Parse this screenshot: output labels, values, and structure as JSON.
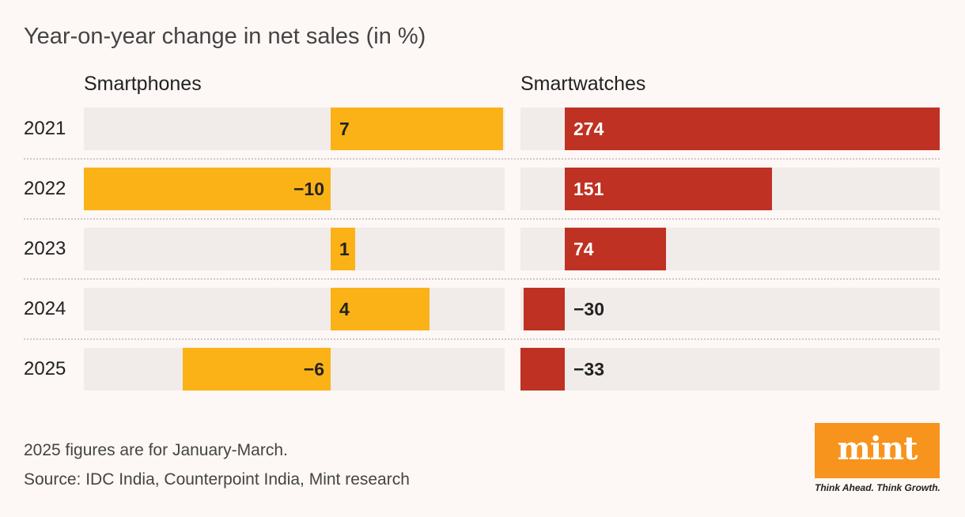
{
  "chart_data": {
    "type": "bar",
    "title": "Year-on-year change in net sales (in %)",
    "categories": [
      "2021",
      "2022",
      "2023",
      "2024",
      "2025"
    ],
    "series": [
      {
        "name": "Smartphones",
        "values": [
          7,
          -10,
          1,
          4,
          -6
        ],
        "color": "#fbb216"
      },
      {
        "name": "Smartwatches",
        "values": [
          274,
          151,
          74,
          -30,
          -33
        ],
        "color": "#bf3122"
      }
    ],
    "value_labels": {
      "Smartphones": [
        "7",
        "−10",
        "1",
        "4",
        "−6"
      ],
      "Smartwatches": [
        "274",
        "151",
        "74",
        "−30",
        "−33"
      ]
    }
  },
  "notes": {
    "footnote": "2025 figures are for January-March.",
    "source": "Source: IDC India, Counterpoint India, Mint research"
  },
  "branding": {
    "logo_text": "mint",
    "tagline": "Think Ahead. Think Growth.",
    "logo_color": "#f7941d"
  },
  "colors": {
    "background": "#fdf7f5",
    "track": "#f1ecea"
  }
}
